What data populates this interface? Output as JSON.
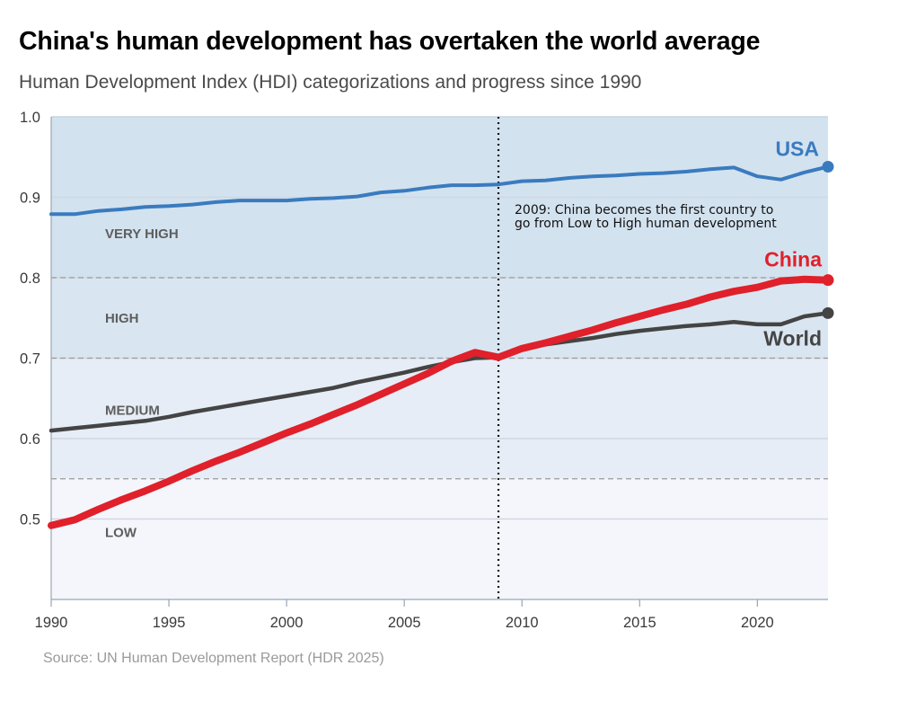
{
  "title": "China's human development has overtaken the world average",
  "subtitle": "Human Development Index (HDI) categorizations and progress since 1990",
  "source": "Source: UN Human Development Report (HDR 2025)",
  "chart_data": {
    "type": "line",
    "xlim": [
      1990,
      2023
    ],
    "ylim": [
      0.4,
      1.0
    ],
    "x_ticks": [
      1990,
      1995,
      2000,
      2005,
      2010,
      2015,
      2020
    ],
    "y_ticks": [
      0.5,
      0.6,
      0.7,
      0.8,
      0.9
    ],
    "y_tick_labels": [
      "0.5",
      "0.6",
      "0.7",
      "0.8",
      "0.9",
      "1.0"
    ],
    "x_tick_labels": [
      "1990",
      "1995",
      "2000",
      "2005",
      "2010",
      "2015",
      "2020"
    ],
    "grid": true,
    "bands": [
      {
        "label": "LOW",
        "from": 0.4,
        "to": 0.55,
        "color": "#f4f6fc"
      },
      {
        "label": "MEDIUM",
        "from": 0.55,
        "to": 0.7,
        "color": "#e6edf6"
      },
      {
        "label": "HIGH",
        "from": 0.7,
        "to": 0.8,
        "color": "#d9e6f1"
      },
      {
        "label": "VERY HIGH",
        "from": 0.8,
        "to": 1.0,
        "color": "#d3e2ef"
      }
    ],
    "annotation": {
      "x": 2009,
      "lines": [
        "2009: China becomes the first country to",
        "go from Low to High human development"
      ]
    },
    "x": [
      1990,
      1991,
      1992,
      1993,
      1994,
      1995,
      1996,
      1997,
      1998,
      1999,
      2000,
      2001,
      2002,
      2003,
      2004,
      2005,
      2006,
      2007,
      2008,
      2009,
      2010,
      2011,
      2012,
      2013,
      2014,
      2015,
      2016,
      2017,
      2018,
      2019,
      2020,
      2021,
      2022,
      2023
    ],
    "series": [
      {
        "name": "USA",
        "color": "#3a7bbf",
        "values": [
          0.879,
          0.879,
          0.883,
          0.885,
          0.888,
          0.889,
          0.891,
          0.894,
          0.896,
          0.896,
          0.896,
          0.898,
          0.899,
          0.901,
          0.906,
          0.908,
          0.912,
          0.915,
          0.915,
          0.916,
          0.92,
          0.921,
          0.924,
          0.926,
          0.927,
          0.929,
          0.93,
          0.932,
          0.935,
          0.937,
          0.926,
          0.922,
          0.931,
          0.938
        ]
      },
      {
        "name": "China",
        "color": "#e0202a",
        "values": [
          0.492,
          0.499,
          0.512,
          0.524,
          0.535,
          0.547,
          0.56,
          0.572,
          0.583,
          0.595,
          0.607,
          0.618,
          0.63,
          0.642,
          0.655,
          0.668,
          0.681,
          0.696,
          0.707,
          0.701,
          0.712,
          0.719,
          0.727,
          0.735,
          0.744,
          0.752,
          0.76,
          0.767,
          0.776,
          0.783,
          0.788,
          0.796,
          0.798,
          0.797
        ]
      },
      {
        "name": "World",
        "color": "#444444",
        "values": [
          0.61,
          0.613,
          0.616,
          0.619,
          0.622,
          0.627,
          0.633,
          0.638,
          0.643,
          0.648,
          0.653,
          0.658,
          0.663,
          0.67,
          0.676,
          0.682,
          0.689,
          0.695,
          0.7,
          0.701,
          0.712,
          0.717,
          0.721,
          0.725,
          0.73,
          0.734,
          0.737,
          0.74,
          0.742,
          0.745,
          0.742,
          0.742,
          0.752,
          0.756
        ]
      }
    ]
  }
}
